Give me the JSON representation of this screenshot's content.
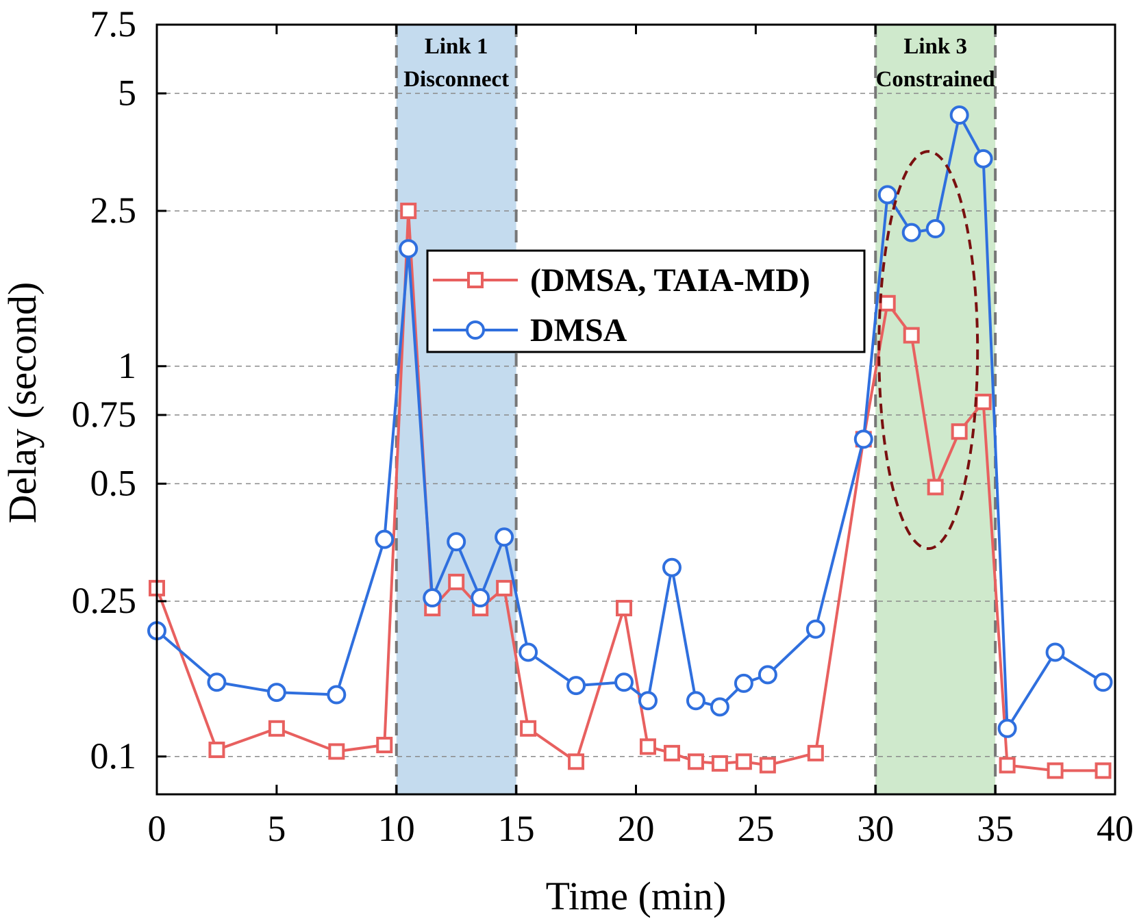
{
  "chart_data": {
    "type": "line",
    "xlabel": "Time (min)",
    "ylabel": "Delay (second)",
    "xlim": [
      0,
      40
    ],
    "ylim": [
      0.08,
      7.5
    ],
    "y_scale": "log",
    "x_ticks": [
      0,
      5,
      10,
      15,
      20,
      25,
      30,
      35,
      40
    ],
    "x_tick_labels": [
      "0",
      "5",
      "10",
      "15",
      "20",
      "25",
      "30",
      "35",
      "40"
    ],
    "y_ticks": [
      0.1,
      0.25,
      0.5,
      0.75,
      1,
      2.5,
      5,
      7.5
    ],
    "y_tick_labels": [
      "0.1",
      "0.25",
      "0.5",
      "0.75",
      "1",
      "2.5",
      "5",
      "7.5"
    ],
    "grid": "horizontal dashed",
    "legend_position": "upper-center",
    "series": [
      {
        "name": "(DMSA, TAIA-MD)",
        "color": "#e8605f",
        "marker": "square",
        "x": [
          0,
          2.5,
          5,
          7.5,
          9.5,
          10.5,
          11.5,
          12.5,
          13.5,
          14.5,
          15.5,
          17.5,
          19.5,
          20.5,
          21.5,
          22.5,
          23.5,
          24.5,
          25.5,
          27.5,
          29.5,
          30.5,
          31.5,
          32.5,
          33.5,
          34.5,
          35.5,
          37.5,
          39.5
        ],
        "y": [
          0.27,
          0.104,
          0.118,
          0.103,
          0.107,
          2.5,
          0.24,
          0.28,
          0.24,
          0.27,
          0.118,
          0.097,
          0.24,
          0.106,
          0.102,
          0.097,
          0.096,
          0.097,
          0.095,
          0.102,
          0.65,
          1.45,
          1.2,
          0.49,
          0.68,
          0.81,
          0.095,
          0.092,
          0.092
        ]
      },
      {
        "name": "DMSA",
        "color": "#2f6fde",
        "marker": "circle",
        "x": [
          0,
          2.5,
          5,
          7.5,
          9.5,
          10.5,
          11.5,
          12.5,
          13.5,
          14.5,
          15.5,
          17.5,
          19.5,
          20.5,
          21.5,
          22.5,
          23.5,
          24.5,
          25.5,
          27.5,
          29.5,
          30.5,
          31.5,
          32.5,
          33.5,
          34.5,
          35.5,
          37.5,
          39.5
        ],
        "y": [
          0.21,
          0.155,
          0.146,
          0.144,
          0.36,
          2.0,
          0.255,
          0.355,
          0.255,
          0.365,
          0.185,
          0.152,
          0.155,
          0.139,
          0.305,
          0.139,
          0.134,
          0.154,
          0.162,
          0.212,
          0.65,
          2.75,
          2.2,
          2.25,
          4.4,
          3.4,
          0.118,
          0.185,
          0.155
        ]
      }
    ],
    "regions": [
      {
        "x_range": [
          10,
          15
        ],
        "color": "#c4dbee",
        "label_line1": "Link 1",
        "label_line2": "Disconnect"
      },
      {
        "x_range": [
          30,
          35
        ],
        "color": "#cfe9cc",
        "label_line1": "Link 3",
        "label_line2": "Constrained"
      }
    ],
    "annotation": {
      "type": "dashed ellipse",
      "color": "#7a1010",
      "center_x": 32.2,
      "center_y": 1.1
    }
  }
}
